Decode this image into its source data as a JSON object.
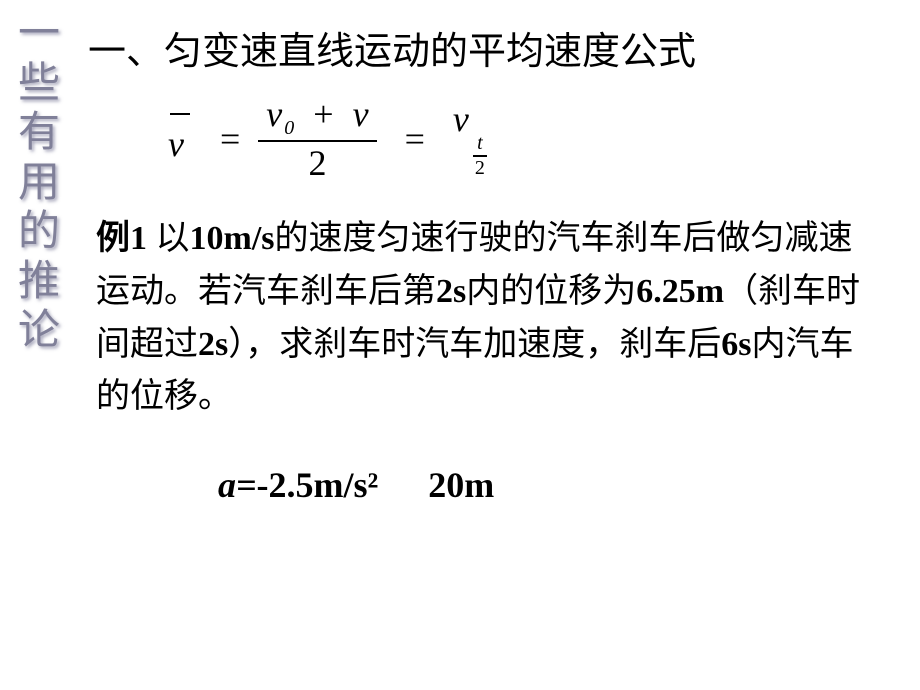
{
  "sidebar": {
    "chars": [
      "一",
      "些",
      "有",
      "用",
      "的",
      "推",
      "论"
    ]
  },
  "heading": "一、匀变速直线运动的平均速度公式",
  "formula": {
    "lhs_var": "v",
    "eq1": "=",
    "frac_top_a": "v",
    "frac_top_sub_a": "0",
    "frac_top_plus": "+",
    "frac_top_b": "v",
    "frac_bot": "2",
    "eq2": "=",
    "rhs_var": "v",
    "rhs_sub_top": "t",
    "rhs_sub_bot": "2"
  },
  "example": {
    "label": "例1",
    "text_1": "  以",
    "val_1": "10m/s",
    "text_2": "的速度匀速行驶的汽车刹车后做匀减速运动。若汽车刹车后第",
    "val_2": "2s",
    "text_3": "内的位移为",
    "val_3": "6.25m",
    "text_4": "（刹车时间超过",
    "val_4": "2s",
    "text_5": "），求刹车时汽车加速度，刹车后",
    "val_5": "6s",
    "text_6": "内汽车的位移。"
  },
  "answer": {
    "a_label": "a=",
    "a_value": "-2.5m/s²",
    "disp_value": "20m"
  }
}
